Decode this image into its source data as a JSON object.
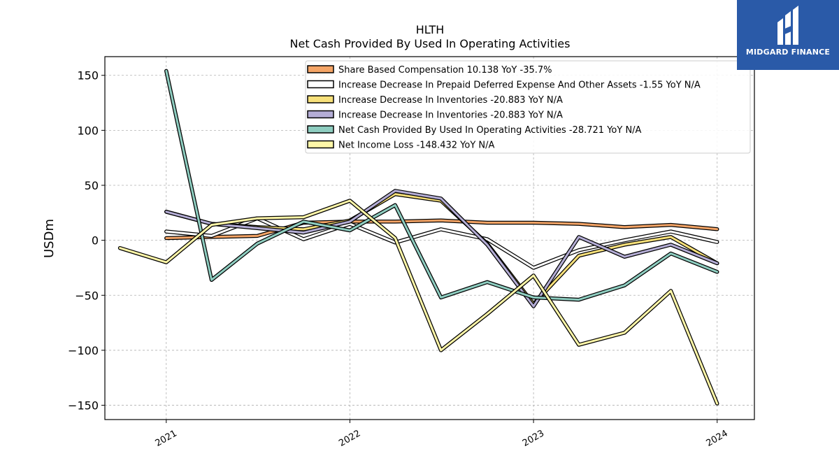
{
  "logo": {
    "text": "MIDGARD FINANCE"
  },
  "chart_data": {
    "type": "line",
    "title": "HLTH",
    "subtitle": "Net Cash Provided By Used In Operating Activities",
    "ylabel": "USDm",
    "xlabel": "",
    "xlim": [
      "2020-09-01",
      "2024-03-15"
    ],
    "ylim": [
      -163,
      167
    ],
    "xticks": [
      {
        "date": "2021-01-01",
        "label": "2021"
      },
      {
        "date": "2022-01-01",
        "label": "2022"
      },
      {
        "date": "2023-01-01",
        "label": "2023"
      },
      {
        "date": "2024-01-01",
        "label": "2024"
      }
    ],
    "yticks": [
      150,
      100,
      50,
      0,
      -50,
      -100,
      -150
    ],
    "ytick_labels": [
      "150",
      "100",
      "50",
      "0",
      "−50",
      "−100",
      "−150"
    ],
    "grid": true,
    "legend_position": "top-right",
    "series": [
      {
        "name": "Share Based Compensation  10.138 YoY -35.7%",
        "color": "#f4a466",
        "x": [
          "2021-01-01",
          "2021-04-01",
          "2021-07-01",
          "2021-10-01",
          "2022-01-01",
          "2022-04-01",
          "2022-07-01",
          "2022-10-01",
          "2023-01-01",
          "2023-04-01",
          "2023-07-01",
          "2023-10-01",
          "2024-01-01"
        ],
        "y": [
          2,
          3,
          4,
          16,
          17,
          17,
          18,
          16,
          16,
          15,
          12,
          14,
          10.138
        ]
      },
      {
        "name": "Increase Decrease In Prepaid Deferred Expense And Other Assets  -1.55 YoY N/A",
        "color": "#ffffff",
        "x": [
          "2021-01-01",
          "2021-04-01",
          "2021-07-01",
          "2021-10-01",
          "2022-01-01",
          "2022-04-01",
          "2022-07-01",
          "2022-10-01",
          "2023-01-01",
          "2023-04-01",
          "2023-07-01",
          "2023-10-01",
          "2024-01-01"
        ],
        "y": [
          8,
          4,
          20,
          1,
          15,
          -2,
          10,
          1,
          -25,
          -9,
          0,
          8,
          -1.55
        ]
      },
      {
        "name": "Increase Decrease In Inventories  -20.883 YoY N/A",
        "color": "#f7e07a",
        "x": [
          "2021-01-01",
          "2021-04-01",
          "2021-07-01",
          "2021-10-01",
          "2022-01-01",
          "2022-04-01",
          "2022-07-01",
          "2022-10-01",
          "2023-01-01",
          "2023-04-01",
          "2023-07-01",
          "2023-10-01",
          "2024-01-01"
        ],
        "y": [
          26,
          15,
          12,
          10,
          18,
          42,
          36,
          -3,
          -58,
          -14,
          -4,
          3,
          -20.883
        ]
      },
      {
        "name": "Increase Decrease In Inventories  -20.883 YoY N/A",
        "color": "#b4add5",
        "x": [
          "2021-01-01",
          "2021-04-01",
          "2021-07-01",
          "2021-10-01",
          "2022-01-01",
          "2022-04-01",
          "2022-07-01",
          "2022-10-01",
          "2023-01-01",
          "2023-04-01",
          "2023-07-01",
          "2023-10-01",
          "2024-01-01"
        ],
        "y": [
          26,
          15,
          11,
          7,
          17,
          45,
          38,
          -4,
          -60,
          3,
          -15,
          -4,
          -20.883
        ]
      },
      {
        "name": "Net Cash Provided By Used In Operating Activities  -28.721 YoY N/A",
        "color": "#8ecdc0",
        "x": [
          "2021-01-01",
          "2021-04-01",
          "2021-07-01",
          "2021-10-01",
          "2022-01-01",
          "2022-04-01",
          "2022-07-01",
          "2022-10-01",
          "2023-01-01",
          "2023-04-01",
          "2023-07-01",
          "2023-10-01",
          "2024-01-01"
        ],
        "y": [
          154,
          -36,
          -3,
          17,
          9,
          32,
          -52,
          -38,
          -52,
          -54,
          -41,
          -12,
          -28.721
        ]
      },
      {
        "name": "Net Income Loss  -148.432 YoY N/A",
        "color": "#fff7a8",
        "x": [
          "2020-10-01",
          "2021-01-01",
          "2021-04-01",
          "2021-07-01",
          "2021-10-01",
          "2022-01-01",
          "2022-04-01",
          "2022-07-01",
          "2022-10-01",
          "2023-01-01",
          "2023-04-01",
          "2023-07-01",
          "2023-10-01",
          "2024-01-01"
        ],
        "y": [
          -7,
          -20,
          14,
          20,
          21,
          36,
          2,
          -100,
          -67,
          -32,
          -95,
          -84,
          -46,
          -148.432
        ]
      }
    ]
  }
}
